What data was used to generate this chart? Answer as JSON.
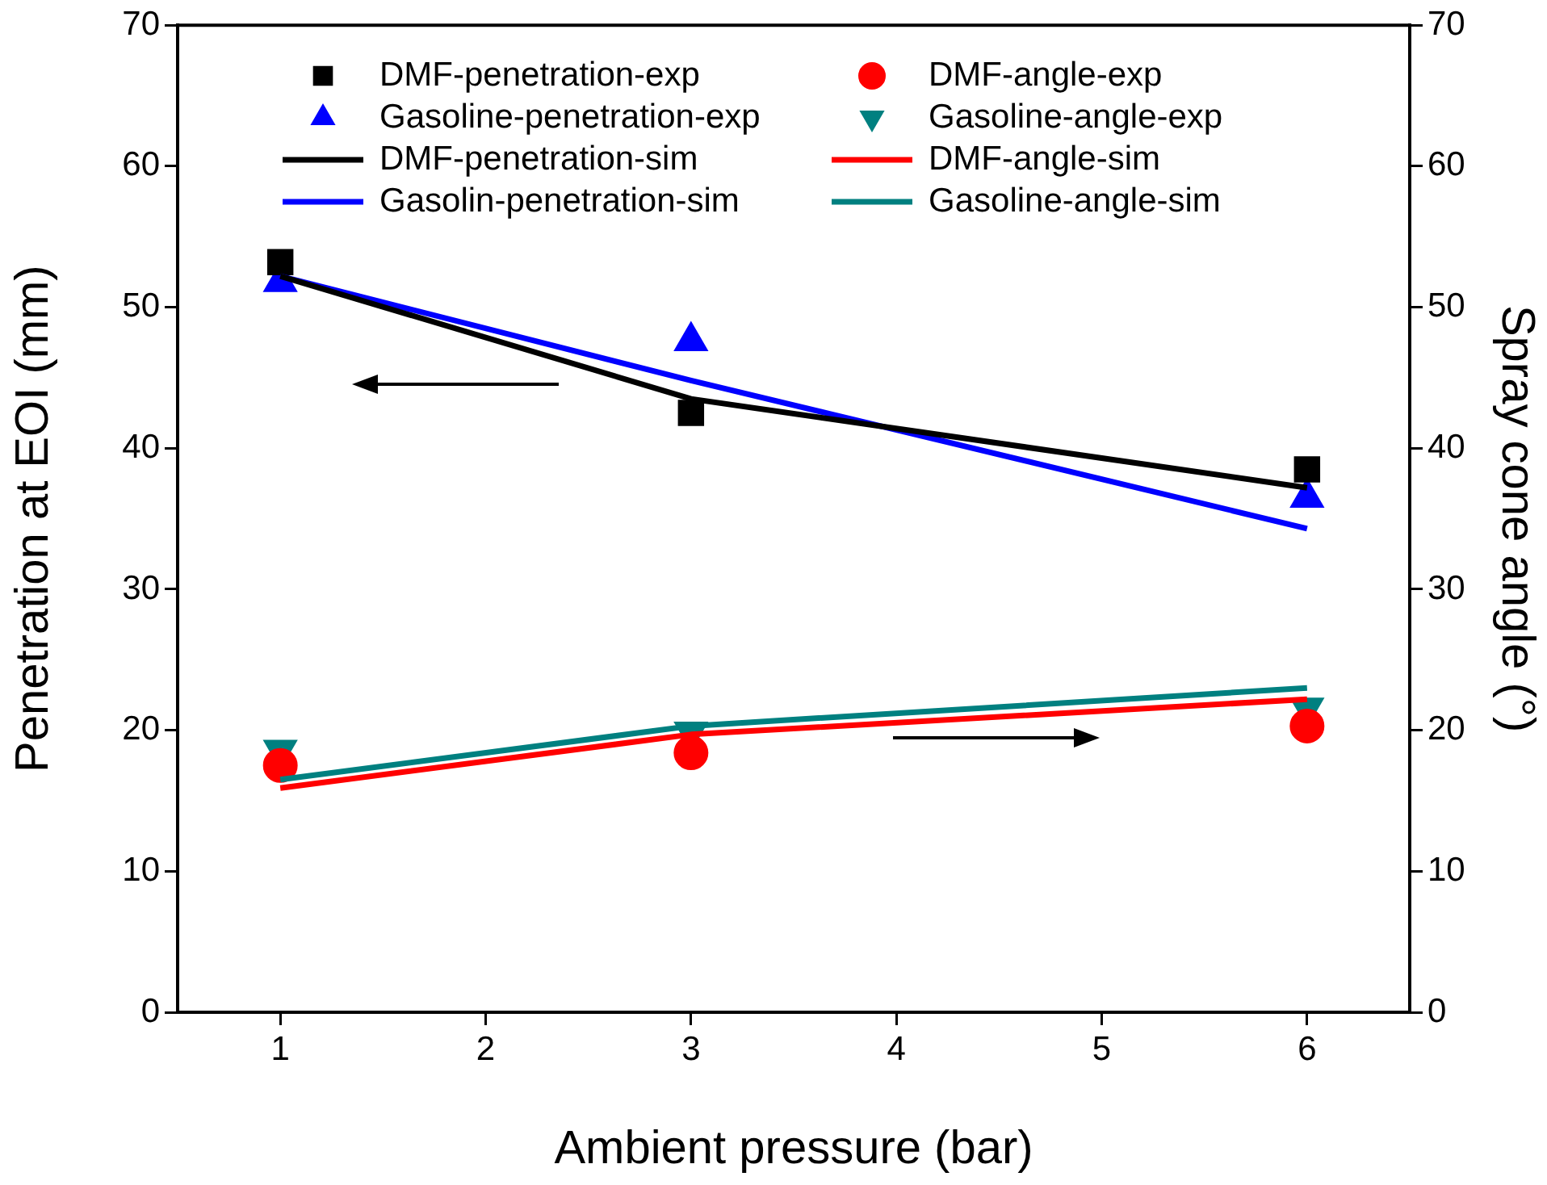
{
  "chart_data": {
    "type": "line",
    "xlabel": "Ambient pressure (bar)",
    "ylabel": "Penetration at EOI (mm)",
    "y2label": "Spray cone angle (°)",
    "xlim": [
      0.5,
      6.5
    ],
    "xticks": [
      1,
      2,
      3,
      4,
      5,
      6
    ],
    "ylim": [
      0,
      70
    ],
    "yticks": [
      0,
      10,
      20,
      30,
      40,
      50,
      60,
      70
    ],
    "y2lim": [
      0,
      70
    ],
    "y2ticks": [
      0,
      10,
      20,
      30,
      40,
      50,
      60,
      70
    ],
    "grid": false,
    "legend": "top",
    "series": [
      {
        "name": "DMF-penetration-exp",
        "type": "scatter",
        "marker": "square",
        "color": "#000000",
        "x": [
          1,
          3,
          6
        ],
        "values": [
          53.2,
          42.5,
          38.5
        ]
      },
      {
        "name": "DMF-angle-exp",
        "type": "scatter",
        "marker": "circle",
        "color": "#ff0000",
        "axis": "y2",
        "x": [
          1,
          3,
          6
        ],
        "values": [
          17.5,
          18.4,
          20.3
        ]
      },
      {
        "name": "Gasoline-penetration-exp",
        "type": "scatter",
        "marker": "triangle",
        "color": "#0000ff",
        "x": [
          1,
          3,
          6
        ],
        "values": [
          51.8,
          47.6,
          36.5
        ]
      },
      {
        "name": "Gasoline-angle-exp",
        "type": "scatter",
        "marker": "triangle-down",
        "color": "#008080",
        "axis": "y2",
        "x": [
          1,
          3,
          6
        ],
        "values": [
          18.6,
          19.9,
          21.6
        ]
      },
      {
        "name": "DMF-penetration-sim",
        "type": "line",
        "marker": "none",
        "color": "#000000",
        "x": [
          1,
          3,
          6
        ],
        "values": [
          52.2,
          43.5,
          37.2
        ]
      },
      {
        "name": "DMF-angle-sim",
        "type": "line",
        "marker": "none",
        "color": "#ff0000",
        "axis": "y2",
        "x": [
          1,
          3,
          6
        ],
        "values": [
          15.9,
          19.7,
          22.2
        ]
      },
      {
        "name": "Gasolin-penetration-sim",
        "type": "line",
        "marker": "none",
        "color": "#0000ff",
        "x": [
          1,
          3,
          6
        ],
        "values": [
          52.2,
          44.8,
          34.3
        ]
      },
      {
        "name": "Gasoline-angle-sim",
        "type": "line",
        "marker": "none",
        "color": "#008080",
        "axis": "y2",
        "x": [
          1,
          3,
          6
        ],
        "values": [
          16.5,
          20.3,
          23.0
        ]
      }
    ]
  }
}
